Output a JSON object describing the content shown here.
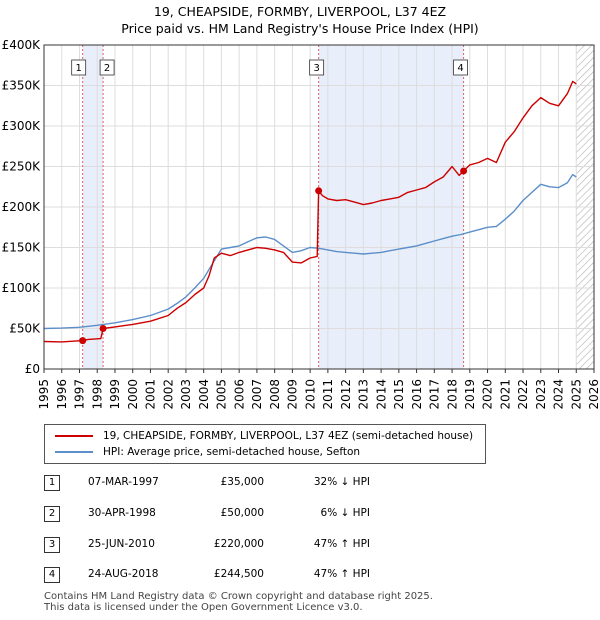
{
  "title_line1": "19, CHEAPSIDE, FORMBY, LIVERPOOL, L37 4EZ",
  "title_line2": "Price paid vs. HM Land Registry's House Price Index (HPI)",
  "chart_data": {
    "type": "line",
    "xlim": [
      1995,
      2026
    ],
    "ylim": [
      0,
      400000
    ],
    "x_ticks": [
      1995,
      1996,
      1997,
      1998,
      1999,
      2000,
      2001,
      2002,
      2003,
      2004,
      2005,
      2006,
      2007,
      2008,
      2009,
      2010,
      2011,
      2012,
      2013,
      2014,
      2015,
      2016,
      2017,
      2018,
      2019,
      2020,
      2021,
      2022,
      2023,
      2024,
      2025,
      2026
    ],
    "y_ticks": [
      {
        "value": 0,
        "label": "£0"
      },
      {
        "value": 50000,
        "label": "£50K"
      },
      {
        "value": 100000,
        "label": "£100K"
      },
      {
        "value": 150000,
        "label": "£150K"
      },
      {
        "value": 200000,
        "label": "£200K"
      },
      {
        "value": 250000,
        "label": "£250K"
      },
      {
        "value": 300000,
        "label": "£300K"
      },
      {
        "value": 350000,
        "label": "£350K"
      },
      {
        "value": 400000,
        "label": "£400K"
      }
    ],
    "grid": true,
    "colors": {
      "price": "#cc0000",
      "hpi": "#5b8fc9",
      "shade": "#e8eefa",
      "marker_line": "#e06060",
      "hatch": "#bbbbbb"
    },
    "hatch_from": 2025.0,
    "shaded_ranges": [
      [
        1997.18,
        1998.33
      ],
      [
        2010.48,
        2018.65
      ]
    ],
    "series": [
      {
        "name": "19, CHEAPSIDE, FORMBY, LIVERPOOL, L37 4EZ (semi-detached house)",
        "color": "#cc0000",
        "x": [
          1995.0,
          1996.0,
          1997.18,
          1997.5,
          1998.2,
          1998.33,
          1999.0,
          2000.0,
          2001.0,
          2002.0,
          2002.5,
          2003.0,
          2003.5,
          2004.0,
          2004.3,
          2004.6,
          2005.0,
          2005.5,
          2006.0,
          2006.5,
          2007.0,
          2007.5,
          2008.0,
          2008.5,
          2009.0,
          2009.5,
          2010.0,
          2010.4,
          2010.48,
          2010.7,
          2011.0,
          2011.5,
          2012.0,
          2012.5,
          2013.0,
          2013.5,
          2014.0,
          2014.5,
          2015.0,
          2015.5,
          2016.0,
          2016.5,
          2017.0,
          2017.5,
          2018.0,
          2018.4,
          2018.65,
          2019.0,
          2019.5,
          2020.0,
          2020.5,
          2021.0,
          2021.5,
          2022.0,
          2022.5,
          2023.0,
          2023.5,
          2024.0,
          2024.5,
          2024.8,
          2025.0
        ],
        "values": [
          34000,
          33500,
          35000,
          36500,
          37500,
          50000,
          52000,
          55000,
          59000,
          66000,
          75000,
          82000,
          92000,
          100000,
          115000,
          137000,
          143000,
          140000,
          144000,
          147000,
          150000,
          149000,
          147000,
          144000,
          132000,
          131000,
          137000,
          139000,
          220000,
          214000,
          210000,
          208000,
          209000,
          206000,
          203000,
          205000,
          208000,
          210000,
          212000,
          218000,
          221000,
          224000,
          231000,
          237000,
          250000,
          239000,
          244500,
          252000,
          255000,
          260000,
          255000,
          280000,
          293000,
          310000,
          325000,
          335000,
          328000,
          325000,
          340000,
          355000,
          352000
        ]
      },
      {
        "name": "HPI: Average price, semi-detached house, Sefton",
        "color": "#5b8fc9",
        "x": [
          1995.0,
          1996.0,
          1997.0,
          1998.0,
          1999.0,
          2000.0,
          2001.0,
          2002.0,
          2002.5,
          2003.0,
          2003.5,
          2004.0,
          2004.5,
          2005.0,
          2005.5,
          2006.0,
          2006.5,
          2007.0,
          2007.5,
          2008.0,
          2008.5,
          2009.0,
          2009.5,
          2010.0,
          2010.5,
          2011.0,
          2011.5,
          2012.0,
          2012.5,
          2013.0,
          2013.5,
          2014.0,
          2014.5,
          2015.0,
          2015.5,
          2016.0,
          2016.5,
          2017.0,
          2017.5,
          2018.0,
          2018.5,
          2019.0,
          2019.5,
          2020.0,
          2020.5,
          2021.0,
          2021.5,
          2022.0,
          2022.5,
          2023.0,
          2023.5,
          2024.0,
          2024.5,
          2024.8,
          2025.0
        ],
        "values": [
          50000,
          50500,
          51500,
          54000,
          57000,
          61000,
          66000,
          74000,
          81000,
          89000,
          100000,
          112000,
          130000,
          148000,
          150000,
          152000,
          157000,
          162000,
          163000,
          160000,
          152000,
          144000,
          146000,
          150000,
          149000,
          147000,
          145000,
          144000,
          143000,
          142000,
          143000,
          144000,
          146000,
          148000,
          150000,
          152000,
          155000,
          158000,
          161000,
          164000,
          166000,
          169000,
          172000,
          175000,
          176000,
          185000,
          195000,
          208000,
          218000,
          228000,
          225000,
          224000,
          230000,
          240000,
          237000
        ]
      }
    ],
    "sales": [
      {
        "label": "1",
        "x": 1997.18,
        "price": 35000
      },
      {
        "label": "2",
        "x": 1998.33,
        "price": 50000
      },
      {
        "label": "3",
        "x": 2010.48,
        "price": 220000
      },
      {
        "label": "4",
        "x": 2018.65,
        "price": 244500
      }
    ],
    "legend": [
      "19, CHEAPSIDE, FORMBY, LIVERPOOL, L37 4EZ (semi-detached house)",
      "HPI: Average price, semi-detached house, Sefton"
    ]
  },
  "transactions": [
    {
      "num": "1",
      "date": "07-MAR-1997",
      "price": "£35,000",
      "hpi": "32% ↓ HPI"
    },
    {
      "num": "2",
      "date": "30-APR-1998",
      "price": "£50,000",
      "hpi": "6% ↓ HPI"
    },
    {
      "num": "3",
      "date": "25-JUN-2010",
      "price": "£220,000",
      "hpi": "47% ↑ HPI"
    },
    {
      "num": "4",
      "date": "24-AUG-2018",
      "price": "£244,500",
      "hpi": "47% ↑ HPI"
    }
  ],
  "footer_line1": "Contains HM Land Registry data © Crown copyright and database right 2025.",
  "footer_line2": "This data is licensed under the Open Government Licence v3.0."
}
